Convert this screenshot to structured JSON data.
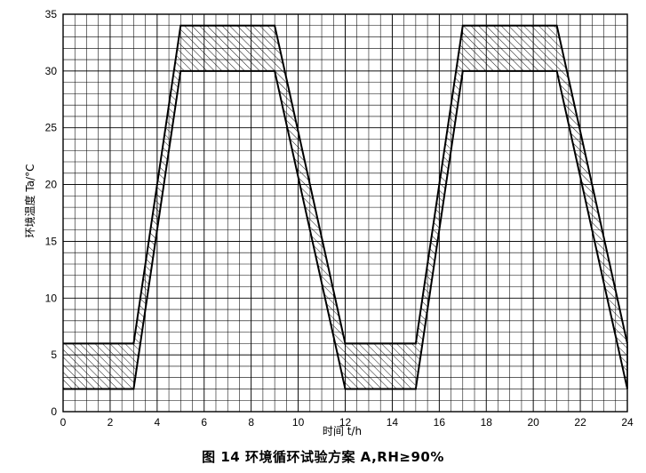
{
  "caption": "图 14   环境循环试验方案 A,RH≥90%",
  "chart_data": {
    "type": "area",
    "xlabel": "时间 t/h",
    "ylabel": "环境温度 Ta/°C",
    "xlim": [
      0,
      24
    ],
    "ylim": [
      0,
      35
    ],
    "x_ticks": [
      0,
      2,
      4,
      6,
      8,
      10,
      12,
      14,
      16,
      18,
      20,
      22,
      24
    ],
    "y_ticks": [
      0,
      5,
      10,
      15,
      20,
      25,
      30,
      35
    ],
    "x_tick_labels": [
      "0",
      "2",
      "4",
      "6",
      "8",
      "10",
      "12",
      "14",
      "16",
      "18",
      "20",
      "22",
      "24"
    ],
    "y_tick_labels": [
      "0",
      "5",
      "10",
      "15",
      "20",
      "25",
      "30",
      "35"
    ],
    "minor_x_step": 0.5,
    "minor_y_step": 1,
    "grid": true,
    "fill_pattern": "hatch",
    "series": [
      {
        "role": "upper",
        "x": [
          0,
          3,
          5,
          9,
          12,
          15,
          17,
          21,
          24
        ],
        "y": [
          6,
          6,
          34,
          34,
          6,
          6,
          34,
          34,
          6
        ]
      },
      {
        "role": "lower",
        "x": [
          0,
          3,
          5,
          9,
          12,
          15,
          17,
          21,
          24
        ],
        "y": [
          2,
          2,
          30,
          30,
          2,
          2,
          30,
          30,
          2
        ]
      }
    ]
  }
}
